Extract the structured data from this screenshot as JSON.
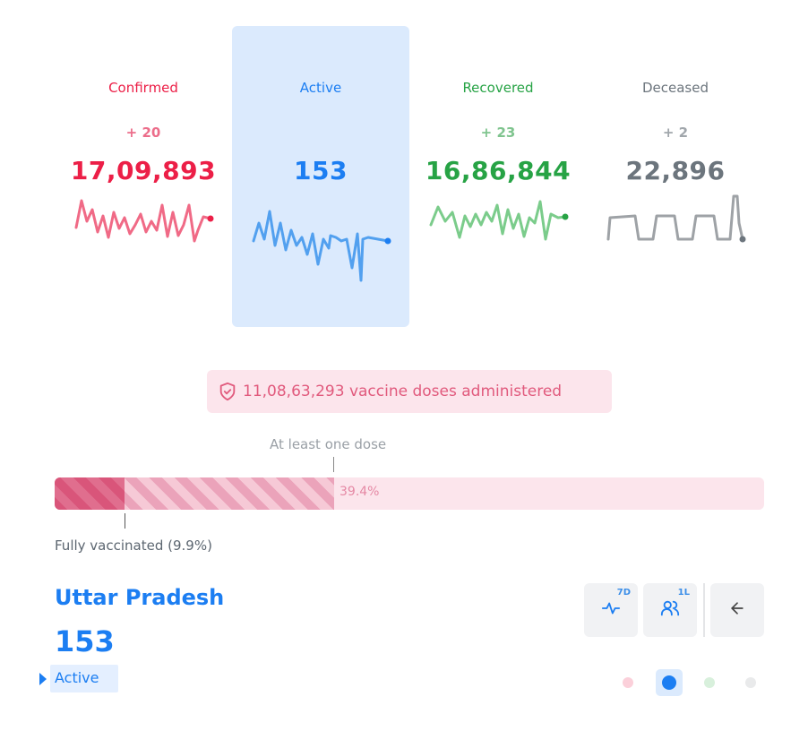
{
  "stats": {
    "confirmed": {
      "title": "Confirmed",
      "delta": "+ 20",
      "total": "17,09,893",
      "color": "#ec1f47",
      "delta_color": "#ec6d8a",
      "line_color": "#f06a86"
    },
    "active": {
      "title": "Active",
      "delta": "",
      "total": "153",
      "color": "#1c7ef2",
      "line_color": "#52a0ef"
    },
    "recovered": {
      "title": "Recovered",
      "delta": "+ 23",
      "total": "16,86,844",
      "color": "#27a345",
      "delta_color": "#7fc48e",
      "line_color": "#7bcc8b"
    },
    "deceased": {
      "title": "Deceased",
      "delta": "+ 2",
      "total": "22,896",
      "color": "#6c757d",
      "delta_color": "#a0a6ab",
      "line_color": "#9ea2a6"
    }
  },
  "vaccination": {
    "banner_text": "11,08,63,293 vaccine doses administered",
    "at_least_one_label": "At least one dose",
    "at_least_one_pct": 39.4,
    "at_least_one_text": "39.4%",
    "fully_label": "Fully vaccinated (9.9%)",
    "fully_pct": 9.9
  },
  "state": {
    "name": "Uttar Pradesh",
    "count": "153",
    "type": "Active"
  },
  "buttons": {
    "trend": {
      "tag": "7D",
      "icon": "pulse-icon"
    },
    "per_capita": {
      "tag": "1L",
      "icon": "users-icon"
    },
    "back": {
      "icon": "arrow-left-icon"
    }
  },
  "colors": {
    "confirmed_dot": "#fbd0da",
    "active_dot": "#1c7ef2",
    "recovered_dot": "#d8f0dc",
    "deceased_dot": "#e9eaeb"
  }
}
